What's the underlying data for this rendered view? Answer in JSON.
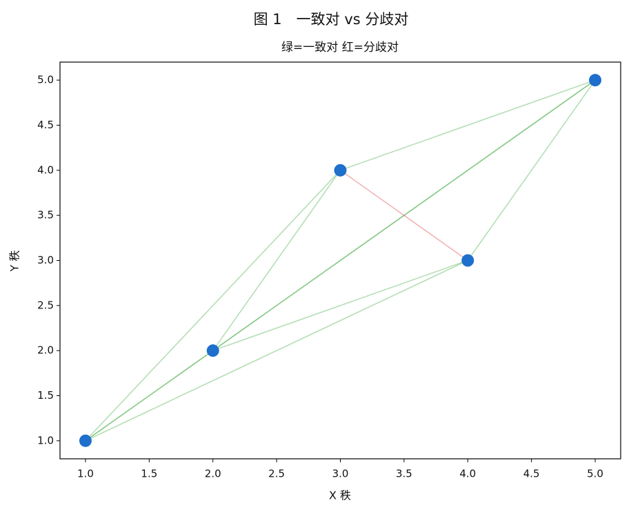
{
  "chart_data": {
    "type": "scatter",
    "title": "图 1　一致对 vs 分歧对",
    "subtitle": "绿=一致对 红=分歧对",
    "x_label": "X 秩",
    "y_label": "Y 秩",
    "x": [
      1,
      2,
      3,
      4,
      5
    ],
    "y": [
      1,
      2,
      4,
      3,
      5
    ],
    "color": "#1f6fcc",
    "concordant_color": "#2ca02c",
    "discordant_color": "#d62728",
    "pair_opacity": 0.35,
    "xlim": [
      0.8,
      5.2
    ],
    "ylim": [
      0.8,
      5.2
    ],
    "xticks": [
      {
        "value": 1,
        "label": "1.0"
      },
      {
        "value": 1.5,
        "label": "1.5"
      },
      {
        "value": 2,
        "label": "2.0"
      },
      {
        "value": 2.5,
        "label": "2.5"
      },
      {
        "value": 3,
        "label": "3.0"
      },
      {
        "value": 3.5,
        "label": "3.5"
      },
      {
        "value": 4,
        "label": "4.0"
      },
      {
        "value": 4.5,
        "label": "4.5"
      },
      {
        "value": 5,
        "label": "5.0"
      }
    ],
    "yticks": [
      {
        "value": 1,
        "label": "1.0"
      },
      {
        "value": 1.5,
        "label": "1.5"
      },
      {
        "value": 2,
        "label": "2.0"
      },
      {
        "value": 2.5,
        "label": "2.5"
      },
      {
        "value": 3,
        "label": "3.0"
      },
      {
        "value": 3.5,
        "label": "3.5"
      },
      {
        "value": 4,
        "label": "4.0"
      },
      {
        "value": 4.5,
        "label": "4.5"
      },
      {
        "value": 5,
        "label": "5.0"
      }
    ],
    "grid": false
  }
}
